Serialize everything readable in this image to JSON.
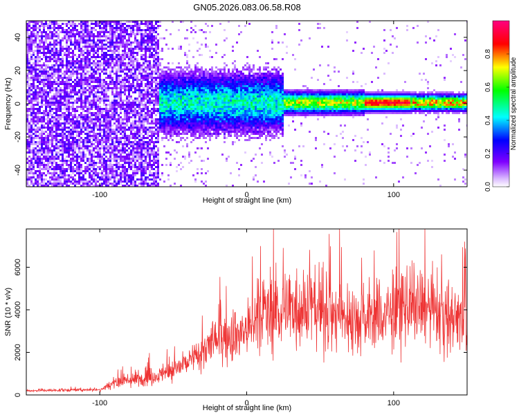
{
  "title": "GN05.2026.083.06.58.R08",
  "chart_data": [
    {
      "type": "heatmap",
      "xlabel": "Height of straight line (km)",
      "ylabel": "Frequency (Hz)",
      "xlim": [
        -150,
        150
      ],
      "ylim": [
        -50,
        50
      ],
      "xticks": [
        -100,
        0,
        100
      ],
      "yticks": [
        -40,
        -20,
        0,
        20,
        40
      ],
      "colorbar": {
        "label": "Normalized spectral amplitude",
        "range": [
          0,
          1
        ],
        "ticks": [
          "0.0",
          "0.2",
          "0.4",
          "0.6",
          "0.8"
        ],
        "colors": [
          "#ffffff",
          "#7f00ff",
          "#0000ff",
          "#00ffff",
          "#00ff00",
          "#ffff00",
          "#ff0000",
          "#ff0080"
        ]
      },
      "description_regions": {
        "noise_band_x": [
          -150,
          -60
        ],
        "signal_band_x": [
          -60,
          150
        ],
        "peak_x": [
          80,
          110
        ],
        "peak_frequency": 0
      }
    },
    {
      "type": "line",
      "xlabel": "Height of straight line (km)",
      "ylabel": "SNR (10 * v/v)",
      "xlim": [
        -150,
        150
      ],
      "ylim": [
        0,
        7800
      ],
      "xticks": [
        -100,
        0,
        100
      ],
      "yticks": [
        0,
        2000,
        4000,
        6000
      ],
      "color": "#ee3333",
      "envelope": {
        "x": [
          -150,
          -100,
          -90,
          -60,
          -40,
          -20,
          0,
          10,
          20,
          30,
          40,
          60,
          80,
          100,
          110,
          120,
          140,
          150
        ],
        "y": [
          200,
          250,
          600,
          900,
          1500,
          2600,
          3000,
          3800,
          3900,
          4200,
          4300,
          3700,
          3600,
          3800,
          4200,
          4000,
          3600,
          3800
        ]
      }
    }
  ]
}
